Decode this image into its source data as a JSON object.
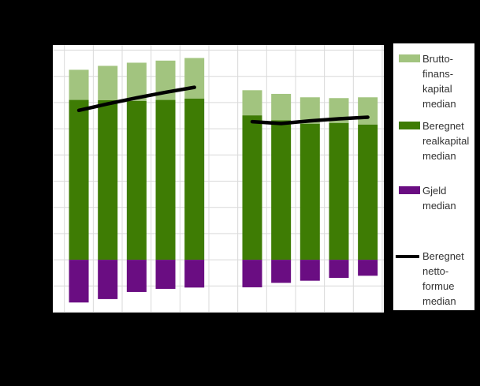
{
  "page": {
    "background_color": "#000000"
  },
  "plot": {
    "background_color": "#ffffff",
    "gridline_color": "#d9d9d9"
  },
  "legend": {
    "background_color": "#ffffff",
    "text_color": "#333333",
    "items": [
      {
        "label": "Brutto-\nfinans-\nkapital\nmedian",
        "color": "#a2c47f",
        "marker": "rect"
      },
      {
        "label": "Beregnet\nrealkapital\nmedian",
        "color": "#3e7c04",
        "marker": "rect"
      },
      {
        "label": "Gjeld\nmedian",
        "color": "#6a0d82",
        "marker": "rect"
      },
      {
        "label": "Beregnet\nnetto-\nformue\nmedian",
        "color": "#000000",
        "marker": "line"
      }
    ]
  },
  "chart_data": {
    "type": "bar",
    "subtype": "stacked_columns_with_line_overlay",
    "title": "",
    "x_tick_labels_visible": false,
    "y_tick_labels_visible": false,
    "value_unit": "gridline-units (axis tick labels not visible in image; 1 unit = one horizontal gridline interval; 0 = base of stacks)",
    "ylim": [
      -2,
      8.2
    ],
    "grid": true,
    "legend_position": "right",
    "colors": {
      "bruttofinanskapital": "#a2c47f",
      "realkapital": "#3e7c04",
      "gjeld": "#6a0d82",
      "nettoformue_line": "#000000"
    },
    "groups": [
      {
        "categories": [
          "",
          "",
          "",
          "",
          ""
        ],
        "series": [
          {
            "name": "Beregnet realkapital median",
            "role": "stack-base",
            "color": "#3e7c04",
            "values": [
              6.1,
              6.09,
              6.06,
              6.1,
              6.15
            ]
          },
          {
            "name": "Bruttofinanskapital median",
            "role": "stack-top",
            "color": "#a2c47f",
            "values": [
              1.15,
              1.31,
              1.46,
              1.5,
              1.55
            ]
          },
          {
            "name": "Gjeld median",
            "role": "stack-negative",
            "color": "#6a0d82",
            "values": [
              -1.63,
              -1.5,
              -1.23,
              -1.11,
              -1.06
            ]
          },
          {
            "name": "Beregnet nettoformue median",
            "role": "line",
            "color": "#000000",
            "values": [
              5.7,
              5.95,
              6.18,
              6.39,
              6.58
            ]
          }
        ]
      },
      {
        "categories": [
          "",
          "",
          "",
          "",
          ""
        ],
        "series": [
          {
            "name": "Beregnet realkapital median",
            "role": "stack-base",
            "color": "#3e7c04",
            "values": [
              5.51,
              5.32,
              5.19,
              5.22,
              5.16
            ]
          },
          {
            "name": "Bruttofinanskapital median",
            "role": "stack-top",
            "color": "#a2c47f",
            "values": [
              0.96,
              1.01,
              1.01,
              0.95,
              1.04
            ]
          },
          {
            "name": "Gjeld median",
            "role": "stack-negative",
            "color": "#6a0d82",
            "values": [
              -1.05,
              -0.88,
              -0.8,
              -0.69,
              -0.61
            ]
          },
          {
            "name": "Beregnet nettoformue median",
            "role": "line",
            "color": "#000000",
            "values": [
              5.27,
              5.2,
              5.3,
              5.38,
              5.44
            ]
          }
        ]
      }
    ]
  }
}
